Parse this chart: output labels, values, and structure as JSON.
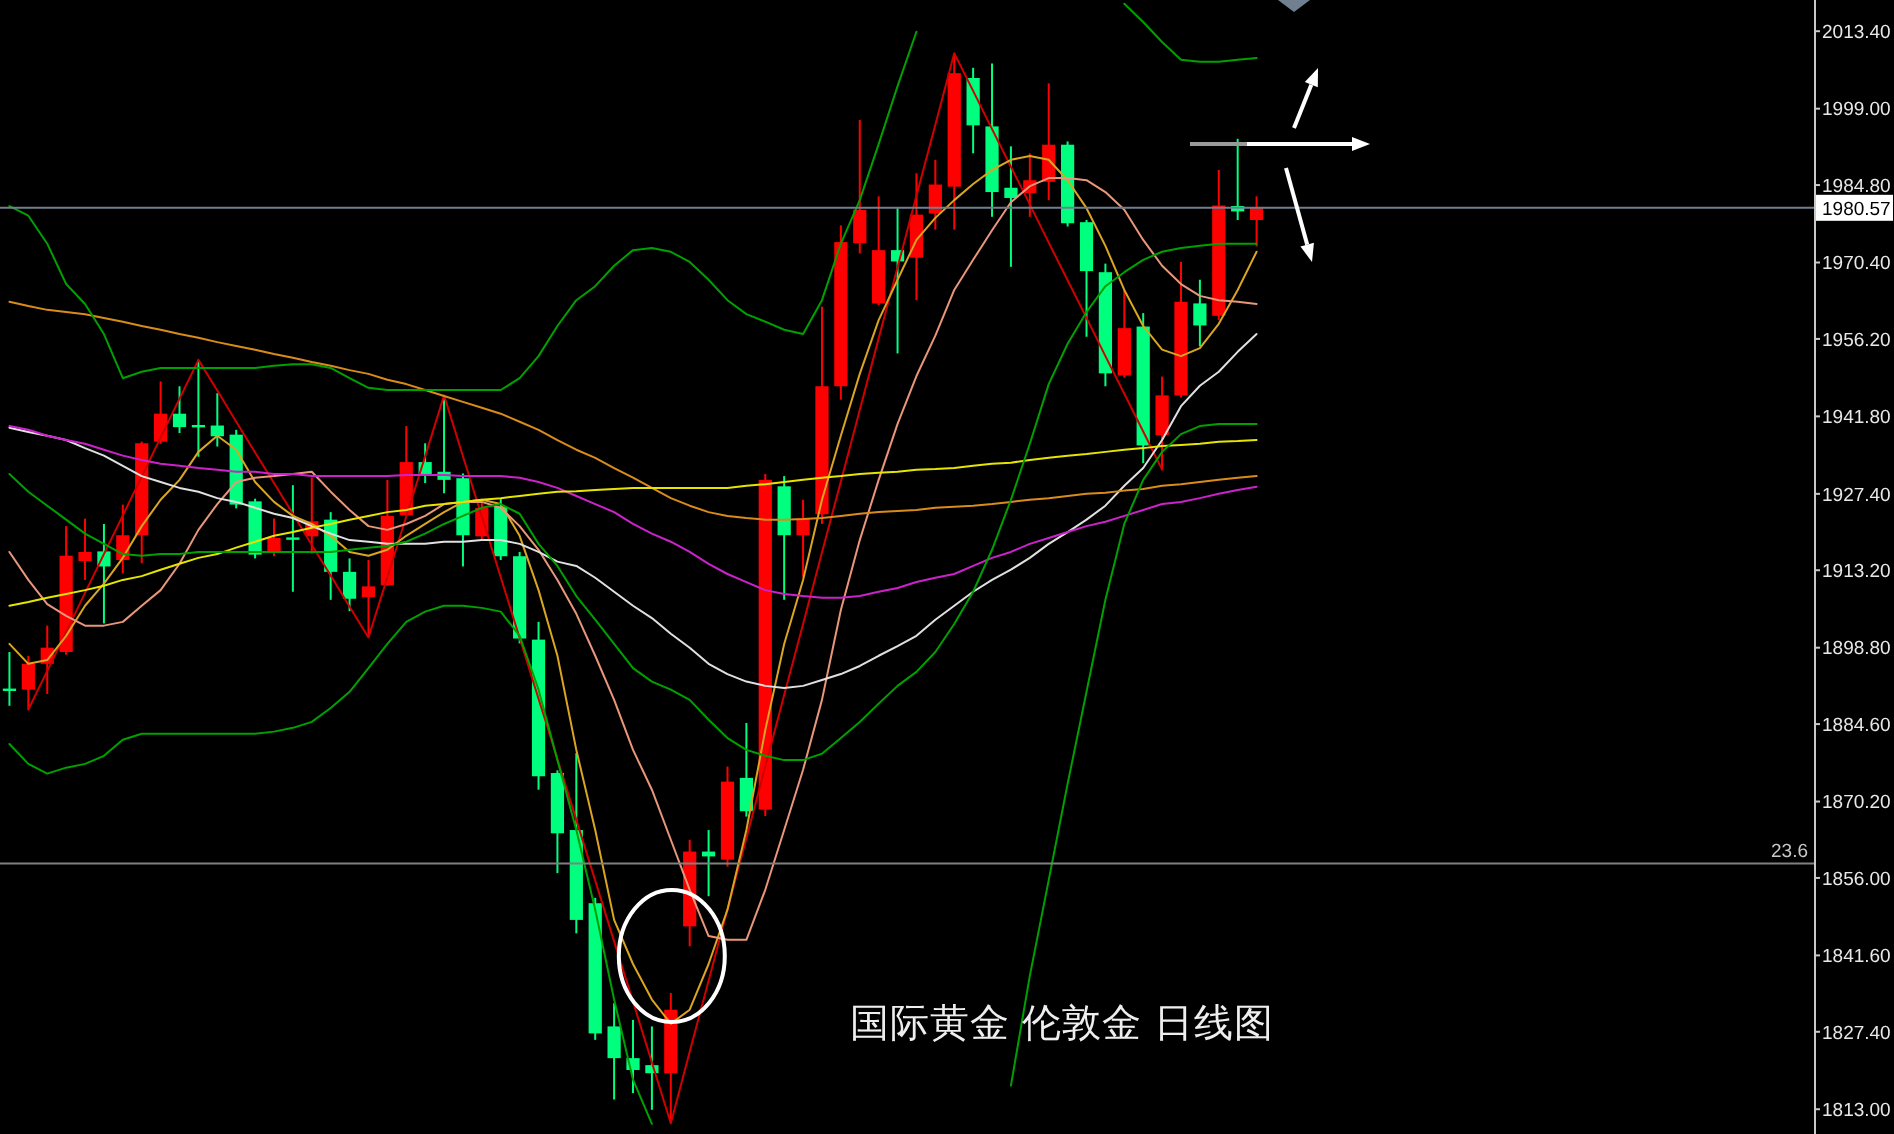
{
  "chart_data": {
    "type": "candlestick",
    "categories": [
      null,
      null,
      null,
      null,
      null,
      null,
      null,
      null,
      null,
      null,
      null,
      null,
      null,
      null,
      null,
      null,
      null,
      null,
      null,
      null,
      null,
      null,
      null,
      null,
      null,
      null,
      null,
      null,
      null,
      null,
      null,
      null,
      null,
      null,
      null,
      null,
      null,
      null,
      null,
      null,
      null,
      null,
      null,
      null,
      null,
      null,
      null,
      null,
      null,
      null,
      null,
      null,
      null,
      null,
      null,
      null,
      null,
      null,
      null,
      null,
      null,
      null,
      null,
      null,
      null,
      null,
      null,
      null,
      null,
      null,
      null,
      null,
      null,
      null,
      null,
      null,
      null,
      null,
      null,
      null,
      null,
      null,
      null,
      null,
      null,
      null,
      null,
      null,
      null,
      null,
      null,
      null,
      null,
      null,
      null,
      null
    ],
    "ohlc": [
      [
        1891.2,
        1898.0,
        1888.0,
        1891.0
      ],
      [
        1891.0,
        1897.3,
        1887.3,
        1895.8
      ],
      [
        1895.8,
        1902.9,
        1890.2,
        1898.8
      ],
      [
        1898.0,
        1921.4,
        1897.5,
        1915.9
      ],
      [
        1914.9,
        1922.8,
        1911.4,
        1916.6
      ],
      [
        1916.7,
        1921.8,
        1903.3,
        1913.9
      ],
      [
        1915.1,
        1925.4,
        1912.6,
        1919.7
      ],
      [
        1919.7,
        1937.1,
        1914.5,
        1936.8
      ],
      [
        1937.1,
        1948.3,
        1936.7,
        1942.3
      ],
      [
        1942.3,
        1947.4,
        1938.7,
        1939.8
      ],
      [
        1940.2,
        1952.3,
        1934.3,
        1939.8
      ],
      [
        1940.1,
        1946.1,
        1936.2,
        1938.1
      ],
      [
        1938.4,
        1939.3,
        1924.7,
        1925.4
      ],
      [
        1926.0,
        1926.5,
        1915.4,
        1916.1
      ],
      [
        1916.6,
        1922.8,
        1915.8,
        1919.2
      ],
      [
        1919.3,
        1929.0,
        1909.2,
        1919.0
      ],
      [
        1919.5,
        1930.4,
        1916.3,
        1922.3
      ],
      [
        1922.6,
        1924.0,
        1907.7,
        1912.9
      ],
      [
        1912.9,
        1915.4,
        1905.6,
        1907.9
      ],
      [
        1908.2,
        1915.1,
        1900.7,
        1910.2
      ],
      [
        1910.4,
        1930.0,
        1910.3,
        1923.3
      ],
      [
        1923.4,
        1940.0,
        1923.3,
        1933.3
      ],
      [
        1933.3,
        1936.8,
        1929.4,
        1931.1
      ],
      [
        1931.5,
        1945.7,
        1927.5,
        1930.0
      ],
      [
        1930.3,
        1931.2,
        1913.9,
        1919.7
      ],
      [
        1919.5,
        1926.3,
        1918.9,
        1924.8
      ],
      [
        1925.0,
        1926.5,
        1915.1,
        1915.8
      ],
      [
        1915.8,
        1916.6,
        1899.6,
        1900.5
      ],
      [
        1900.3,
        1903.6,
        1872.4,
        1874.9
      ],
      [
        1875.5,
        1876.0,
        1856.9,
        1864.3
      ],
      [
        1864.9,
        1879.2,
        1845.7,
        1848.2
      ],
      [
        1851.3,
        1852.3,
        1825.9,
        1827.1
      ],
      [
        1828.4,
        1832.7,
        1814.8,
        1822.5
      ],
      [
        1822.5,
        1829.6,
        1816.0,
        1820.3
      ],
      [
        1821.2,
        1828.4,
        1812.9,
        1819.7
      ],
      [
        1819.7,
        1834.6,
        1810.4,
        1831.5
      ],
      [
        1847.0,
        1863.1,
        1843.3,
        1860.9
      ],
      [
        1860.9,
        1864.9,
        1852.6,
        1860.0
      ],
      [
        1859.4,
        1876.7,
        1858.1,
        1873.9
      ],
      [
        1874.6,
        1884.8,
        1867.4,
        1868.4
      ],
      [
        1868.7,
        1931.1,
        1867.5,
        1930.0
      ],
      [
        1928.8,
        1930.7,
        1907.7,
        1919.7
      ],
      [
        1919.7,
        1926.3,
        1912.0,
        1922.8
      ],
      [
        1923.6,
        1962.2,
        1921.8,
        1947.4
      ],
      [
        1947.4,
        1977.3,
        1944.9,
        1974.2
      ],
      [
        1974.0,
        1996.9,
        1972.1,
        1980.2
      ],
      [
        1962.8,
        1982.7,
        1962.5,
        1972.7
      ],
      [
        1972.7,
        1980.5,
        1953.5,
        1970.6
      ],
      [
        1971.3,
        1987.0,
        1963.4,
        1979.3
      ],
      [
        1979.5,
        1989.5,
        1976.5,
        1984.9
      ],
      [
        1984.5,
        2009.3,
        1976.5,
        2005.6
      ],
      [
        2004.7,
        2006.6,
        1990.7,
        1995.9
      ],
      [
        1995.7,
        2007.4,
        1978.9,
        1983.5
      ],
      [
        1984.3,
        1992.0,
        1969.6,
        1982.4
      ],
      [
        1983.3,
        1990.7,
        1978.9,
        1985.7
      ],
      [
        1985.4,
        2003.7,
        1982.0,
        1992.3
      ],
      [
        1992.3,
        1992.9,
        1977.1,
        1977.7
      ],
      [
        1977.9,
        1978.3,
        1956.6,
        1968.8
      ],
      [
        1968.6,
        1970.2,
        1947.4,
        1949.8
      ],
      [
        1949.4,
        1965.3,
        1949.0,
        1958.2
      ],
      [
        1958.5,
        1961.0,
        1933.1,
        1936.4
      ],
      [
        1938.3,
        1949.2,
        1931.9,
        1945.7
      ],
      [
        1945.7,
        1970.5,
        1945.3,
        1963.1
      ],
      [
        1962.8,
        1967.2,
        1954.8,
        1958.7
      ],
      [
        1960.5,
        1987.6,
        1959.7,
        1981.0
      ],
      [
        1980.9,
        1993.4,
        1978.3,
        1979.9
      ],
      [
        1978.3,
        1982.7,
        1973.4,
        1980.6
      ],
      null,
      null,
      null,
      null,
      null,
      null,
      null,
      null,
      null,
      null,
      null,
      null,
      null,
      null,
      null,
      null,
      null,
      null,
      null,
      null,
      null,
      null,
      null,
      null,
      null,
      null,
      null,
      null,
      null
    ],
    "colors": [
      "#00ff7f",
      "#ff0000",
      "#ff0000",
      "#ff0000",
      "#ff0000",
      "#00ff7f",
      "#ff0000",
      "#ff0000",
      "#ff0000",
      "#00ff7f",
      "#00ff7f",
      "#00ff7f",
      "#00ff7f",
      "#00ff7f",
      "#ff0000",
      "#00ff7f",
      "#ff0000",
      "#00ff7f",
      "#00ff7f",
      "#ff0000",
      "#ff0000",
      "#ff0000",
      "#00ff7f",
      "#00ff7f",
      "#00ff7f",
      "#ff0000",
      "#00ff7f",
      "#00ff7f",
      "#00ff7f",
      "#00ff7f",
      "#00ff7f",
      "#00ff7f",
      "#00ff7f",
      "#00ff7f",
      "#00ff7f",
      "#ff0000",
      "#ff0000",
      "#00ff7f",
      "#ff0000",
      "#00ff7f",
      "#ff0000",
      "#00ff7f",
      "#ff0000",
      "#ff0000",
      "#ff0000",
      "#ff0000",
      "#ff0000",
      "#00ff7f",
      "#ff0000",
      "#ff0000",
      "#ff0000",
      "#00ff7f",
      "#00ff7f",
      "#00ff7f",
      "#ff0000",
      "#ff0000",
      "#00ff7f",
      "#00ff7f",
      "#00ff7f",
      "#ff0000",
      "#00ff7f",
      "#ff0000",
      "#ff0000",
      "#00ff7f",
      "#ff0000",
      "#00ff7f",
      "#ff0000",
      null,
      null,
      null,
      null,
      null,
      null,
      null,
      null,
      null,
      null,
      null,
      null,
      null,
      null,
      null,
      null,
      null,
      null,
      null,
      null,
      null,
      null,
      null,
      null,
      null,
      null,
      null,
      null,
      null
    ],
    "series": [
      {
        "type": "line",
        "color": "#d00000",
        "values": [
          null,
          1887.3,
          1894.5,
          1901.7,
          1909.0,
          1916.2,
          1923.4,
          1930.6,
          1937.9,
          1945.1,
          1952.3,
          1946.6,
          1940.8,
          1935.1,
          1929.4,
          1923.7,
          1917.9,
          1912.2,
          1906.4,
          1900.7,
          1911.9,
          1923.2,
          1934.4,
          1945.7,
          1934.4,
          1923.2,
          1911.9,
          1900.6,
          1889.3,
          1878.1,
          1866.8,
          1855.5,
          1844.2,
          1833.0,
          1821.7,
          1810.4,
          1823.7,
          1836.9,
          1850.2,
          1863.4,
          1876.7,
          1890.0,
          1903.2,
          1916.5,
          1929.7,
          1943.0,
          1956.3,
          1969.5,
          1982.8,
          1996.0,
          2009.3,
          2002.3,
          1995.2,
          1988.2,
          1981.2,
          1974.1,
          1967.1,
          1960.1,
          1953.0,
          1946.0,
          1939.0,
          1931.9,
          null,
          null,
          null,
          null,
          null,
          null,
          null,
          null,
          null,
          null,
          null,
          null,
          null,
          null,
          null,
          null,
          null,
          null,
          null,
          null,
          null,
          null,
          null,
          null,
          null,
          null,
          null,
          null,
          null,
          null,
          null,
          null,
          null,
          null
        ]
      },
      {
        "type": "line",
        "color": "#daa520",
        "values": [
          1899.5,
          1895.8,
          1896.5,
          1901.0,
          1906.6,
          1910.7,
          1915.5,
          1921.4,
          1926.3,
          1930.0,
          1935.2,
          1938.2,
          1935.6,
          1929.6,
          1925.9,
          1923.3,
          1921.8,
          1919.6,
          1916.6,
          1915.9,
          1917.0,
          1919.6,
          1921.8,
          1924.0,
          1925.9,
          1926.3,
          1925.5,
          1919.6,
          1909.5,
          1897.3,
          1879.8,
          1864.9,
          1848.2,
          1840.0,
          1833.4,
          1828.9,
          1831.5,
          1840.0,
          1850.1,
          1864.9,
          1883.5,
          1899.5,
          1911.4,
          1926.3,
          1938.2,
          1949.7,
          1959.7,
          1967.2,
          1974.6,
          1978.7,
          1982.0,
          1985.0,
          1987.6,
          1989.5,
          1990.2,
          1989.5,
          1985.7,
          1980.5,
          1973.5,
          1965.3,
          1958.6,
          1954.2,
          1953.0,
          1954.5,
          1959.0,
          1965.3,
          1972.4,
          null,
          null,
          null,
          null,
          null,
          null,
          null,
          null,
          null,
          null,
          null,
          null,
          null,
          null,
          null,
          null,
          null,
          null,
          null,
          null,
          null,
          null,
          null,
          null,
          null,
          null,
          null,
          null,
          null
        ]
      },
      {
        "type": "line",
        "color": "#e9967a",
        "values": [
          1916.6,
          1911.4,
          1906.9,
          1904.7,
          1902.9,
          1902.9,
          1903.6,
          1906.6,
          1909.5,
          1914.4,
          1920.7,
          1925.5,
          1929.6,
          1930.4,
          1930.7,
          1931.1,
          1931.5,
          1927.8,
          1924.4,
          1921.4,
          1920.7,
          1921.8,
          1923.3,
          1925.5,
          1925.9,
          1925.9,
          1924.8,
          1921.4,
          1917.0,
          1911.4,
          1905.1,
          1897.3,
          1889.1,
          1879.8,
          1872.4,
          1863.1,
          1853.8,
          1845.2,
          1844.5,
          1844.5,
          1853.8,
          1864.9,
          1876.1,
          1889.1,
          1905.8,
          1918.8,
          1930.0,
          1940.4,
          1949.3,
          1956.8,
          1965.3,
          1970.9,
          1976.4,
          1981.6,
          1984.6,
          1986.1,
          1986.1,
          1985.7,
          1983.5,
          1980.2,
          1974.6,
          1969.8,
          1966.4,
          1964.2,
          1963.4,
          1963.1,
          1962.7,
          null,
          null,
          null,
          null,
          null,
          null,
          null,
          null,
          null,
          null,
          null,
          null,
          null,
          null,
          null,
          null,
          null,
          null,
          null,
          null,
          null,
          null,
          null,
          null,
          null,
          null,
          null,
          null,
          null
        ]
      },
      {
        "type": "line",
        "color": "#e0e0e0",
        "values": [
          1939.7,
          1938.9,
          1938.2,
          1937.4,
          1935.9,
          1934.5,
          1932.6,
          1930.7,
          1929.6,
          1928.5,
          1927.8,
          1926.6,
          1925.9,
          1924.8,
          1923.7,
          1922.9,
          1921.4,
          1920.0,
          1918.8,
          1918.5,
          1918.1,
          1918.1,
          1918.1,
          1918.5,
          1918.5,
          1918.8,
          1918.8,
          1918.1,
          1916.6,
          1914.8,
          1914.0,
          1911.8,
          1909.2,
          1906.6,
          1904.3,
          1901.4,
          1898.8,
          1895.8,
          1893.9,
          1892.5,
          1891.7,
          1891.3,
          1891.7,
          1892.8,
          1893.9,
          1895.4,
          1897.3,
          1899.1,
          1901.0,
          1904.0,
          1906.6,
          1909.2,
          1911.4,
          1913.3,
          1915.5,
          1918.1,
          1920.3,
          1922.6,
          1925.2,
          1928.9,
          1932.2,
          1937.4,
          1943.7,
          1947.5,
          1950.1,
          1953.8,
          1957.1,
          null,
          null,
          null,
          null,
          null,
          null,
          null,
          null,
          null,
          null,
          null,
          null,
          null,
          null,
          null,
          null,
          null,
          null,
          null,
          null,
          null,
          null,
          null,
          null,
          null,
          null,
          null,
          null,
          null
        ]
      },
      {
        "type": "line",
        "color": "#cc22cc",
        "values": [
          1940.0,
          1939.3,
          1938.2,
          1937.4,
          1936.7,
          1935.6,
          1934.5,
          1933.7,
          1933.0,
          1932.6,
          1932.2,
          1931.9,
          1931.5,
          1931.5,
          1931.1,
          1931.1,
          1930.7,
          1930.7,
          1930.7,
          1930.7,
          1930.7,
          1930.9,
          1930.9,
          1930.9,
          1930.7,
          1930.7,
          1930.7,
          1930.4,
          1929.6,
          1928.5,
          1927.0,
          1925.5,
          1924.0,
          1921.8,
          1920.0,
          1918.5,
          1916.6,
          1914.4,
          1912.5,
          1911.0,
          1909.5,
          1908.8,
          1908.4,
          1908.1,
          1908.1,
          1908.4,
          1909.2,
          1909.9,
          1911.0,
          1911.8,
          1912.5,
          1914.0,
          1915.5,
          1916.6,
          1918.1,
          1919.2,
          1920.3,
          1921.4,
          1922.2,
          1923.3,
          1924.4,
          1925.5,
          1925.9,
          1926.6,
          1927.4,
          1928.1,
          1928.7,
          null,
          null,
          null,
          null,
          null,
          null,
          null,
          null,
          null,
          null,
          null,
          null,
          null,
          null,
          null,
          null,
          null,
          null,
          null,
          null,
          null,
          null,
          null,
          null,
          null,
          null,
          null,
          null,
          null
        ]
      },
      {
        "type": "line",
        "color": "#d98c1a",
        "values": [
          1963.1,
          1962.3,
          1961.6,
          1961.2,
          1960.8,
          1960.1,
          1959.4,
          1958.6,
          1957.9,
          1957.1,
          1956.4,
          1955.6,
          1954.9,
          1954.2,
          1953.4,
          1952.7,
          1951.9,
          1951.2,
          1950.4,
          1949.7,
          1948.6,
          1947.8,
          1946.7,
          1945.6,
          1944.5,
          1943.4,
          1942.3,
          1940.8,
          1939.3,
          1937.4,
          1935.6,
          1934.1,
          1932.2,
          1930.4,
          1928.5,
          1926.6,
          1925.2,
          1924.0,
          1923.3,
          1922.9,
          1922.6,
          1922.6,
          1922.7,
          1922.9,
          1923.3,
          1923.7,
          1924.0,
          1924.2,
          1924.4,
          1924.8,
          1925.0,
          1925.2,
          1925.5,
          1925.9,
          1926.3,
          1926.6,
          1927.0,
          1927.4,
          1927.6,
          1928.0,
          1928.3,
          1928.9,
          1929.2,
          1929.6,
          1930.0,
          1930.4,
          1930.7,
          null,
          null,
          null,
          null,
          null,
          null,
          null,
          null,
          null,
          null,
          null,
          null,
          null,
          null,
          null,
          null,
          null,
          null,
          null,
          null,
          null,
          null,
          null,
          null,
          null,
          null,
          null,
          null,
          null
        ]
      },
      {
        "type": "line",
        "color": "#e5e500",
        "values": [
          1906.6,
          1907.3,
          1908.1,
          1908.8,
          1909.5,
          1910.3,
          1911.4,
          1912.1,
          1913.3,
          1914.4,
          1915.5,
          1916.2,
          1917.4,
          1918.5,
          1919.6,
          1920.3,
          1921.1,
          1921.8,
          1922.6,
          1923.3,
          1924.0,
          1924.4,
          1925.2,
          1925.5,
          1925.9,
          1926.3,
          1926.6,
          1927.0,
          1927.4,
          1927.8,
          1927.9,
          1928.1,
          1928.3,
          1928.5,
          1928.5,
          1928.5,
          1928.5,
          1928.5,
          1928.5,
          1928.9,
          1929.2,
          1929.6,
          1930.0,
          1930.4,
          1930.7,
          1931.1,
          1931.3,
          1931.5,
          1931.9,
          1932.0,
          1932.2,
          1932.6,
          1933.0,
          1933.2,
          1933.7,
          1934.1,
          1934.5,
          1934.8,
          1935.2,
          1935.6,
          1935.9,
          1936.3,
          1936.5,
          1936.7,
          1937.1,
          1937.2,
          1937.4,
          null,
          null,
          null,
          null,
          null,
          null,
          null,
          null,
          null,
          null,
          null,
          null,
          null,
          null,
          null,
          null,
          null,
          null,
          null,
          null,
          null,
          null,
          null,
          null,
          null,
          null,
          null,
          null,
          null
        ]
      },
      {
        "type": "line",
        "color": "#00a000",
        "values": [
          1980.9,
          1979.1,
          1973.9,
          1966.4,
          1962.7,
          1957.1,
          1948.9,
          1950.1,
          1950.8,
          1950.8,
          1950.8,
          1950.8,
          1950.8,
          1950.8,
          1951.2,
          1951.5,
          1951.5,
          1950.8,
          1948.9,
          1947.1,
          1946.7,
          1946.7,
          1946.7,
          1946.7,
          1946.7,
          1946.7,
          1946.7,
          1948.9,
          1953.0,
          1958.6,
          1963.4,
          1966.0,
          1969.8,
          1972.7,
          1973.1,
          1972.4,
          1970.5,
          1967.2,
          1963.4,
          1960.8,
          1959.4,
          1957.9,
          1957.1,
          1963.4,
          1973.9,
          1982.0,
          1992.4,
          2003.2,
          2013.3,
          null,
          null,
          null,
          null,
          null,
          null,
          null,
          null,
          null,
          null,
          2018.5,
          2015.1,
          2011.4,
          2008.1,
          2007.7,
          2007.7,
          2008.1,
          2008.4,
          null,
          null,
          null,
          null,
          null,
          null,
          null,
          null,
          null,
          null,
          null,
          null,
          null,
          null,
          null,
          null,
          null,
          null,
          null,
          null,
          null,
          null,
          null,
          null,
          null,
          null,
          null,
          null,
          null
        ]
      },
      {
        "type": "line",
        "color": "#00a000",
        "values": [
          1931.1,
          1927.8,
          1925.2,
          1922.6,
          1920.0,
          1918.1,
          1916.2,
          1915.9,
          1916.2,
          1916.2,
          1916.6,
          1916.6,
          1916.6,
          1916.6,
          1916.6,
          1916.6,
          1916.6,
          1916.6,
          1917.0,
          1917.4,
          1917.7,
          1918.5,
          1920.0,
          1921.8,
          1923.3,
          1924.8,
          1925.5,
          1923.7,
          1918.1,
          1914.0,
          1908.4,
          1904.0,
          1899.5,
          1895.0,
          1892.5,
          1891.0,
          1889.1,
          1885.4,
          1882.0,
          1879.8,
          1878.7,
          1877.9,
          1877.9,
          1879.1,
          1882.0,
          1885.0,
          1888.4,
          1891.7,
          1894.3,
          1898.0,
          1903.2,
          1909.2,
          1917.0,
          1926.3,
          1936.7,
          1947.8,
          1955.3,
          1961.2,
          1966.0,
          1968.6,
          1970.9,
          1972.4,
          1973.1,
          1973.5,
          1973.9,
          1973.9,
          1973.9,
          null,
          null,
          null,
          null,
          null,
          null,
          null,
          null,
          null,
          null,
          null,
          null,
          null,
          null,
          null,
          null,
          null,
          null,
          null,
          null,
          null,
          null,
          null,
          null,
          null,
          null,
          null,
          null,
          null
        ]
      },
      {
        "type": "line",
        "color": "#00a000",
        "values": [
          1880.9,
          1877.2,
          1875.4,
          1876.5,
          1877.2,
          1878.7,
          1881.7,
          1882.8,
          1882.8,
          1882.8,
          1882.8,
          1882.8,
          1882.8,
          1882.8,
          1883.2,
          1883.9,
          1885.0,
          1887.6,
          1890.6,
          1895.0,
          1899.5,
          1903.6,
          1905.5,
          1906.6,
          1906.6,
          1906.2,
          1905.5,
          1901.0,
          1891.0,
          1877.9,
          1864.9,
          1850.1,
          1833.4,
          1818.5,
          1810.3,
          null,
          null,
          null,
          null,
          null,
          null,
          null,
          null,
          null,
          null,
          null,
          null,
          null,
          null,
          null,
          null,
          null,
          null,
          1817.4,
          1837.8,
          1855.6,
          1873.5,
          1890.6,
          1907.7,
          1921.8,
          1930.0,
          1935.2,
          1938.5,
          1940.0,
          1940.4,
          1940.4,
          1940.4,
          null,
          null,
          null,
          null,
          null,
          null,
          null,
          null,
          null,
          null,
          null,
          null,
          null,
          null,
          null,
          null,
          null,
          null,
          null,
          null,
          null,
          null,
          null,
          null,
          null,
          null,
          null,
          null,
          null
        ]
      }
    ],
    "ylim": [
      1808.4,
      2019.2
    ],
    "yticks": [
      {
        "value": 2013.4,
        "label": "2013.40"
      },
      {
        "value": 1999.0,
        "label": "1999.00"
      },
      {
        "value": 1984.8,
        "label": "1984.80"
      },
      {
        "value": 1970.4,
        "label": "1970.40"
      },
      {
        "value": 1956.2,
        "label": "1956.20"
      },
      {
        "value": 1941.8,
        "label": "1941.80"
      },
      {
        "value": 1927.4,
        "label": "1927.40"
      },
      {
        "value": 1913.2,
        "label": "1913.20"
      },
      {
        "value": 1898.8,
        "label": "1898.80"
      },
      {
        "value": 1884.6,
        "label": "1884.60"
      },
      {
        "value": 1870.2,
        "label": "1870.20"
      },
      {
        "value": 1856.0,
        "label": "1856.00"
      },
      {
        "value": 1841.6,
        "label": "1841.60"
      },
      {
        "value": 1827.4,
        "label": "1827.40"
      },
      {
        "value": 1813.0,
        "label": "1813.00"
      }
    ],
    "ref_lines": [
      {
        "axis": "y",
        "value": 1980.57,
        "label": "1980.57",
        "color": "#6f7f8f"
      },
      {
        "axis": "y",
        "value": 1858.7,
        "color": "#808080"
      }
    ],
    "annotations": [
      "国际黄金 伦敦金 日线图",
      {
        "text": "23.6",
        "y": 1858.7
      }
    ],
    "tick_labels": "y"
  }
}
